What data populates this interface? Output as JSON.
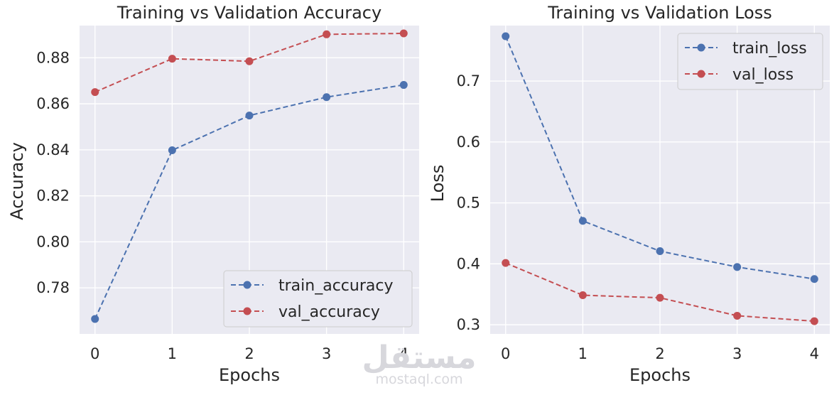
{
  "chart_data": [
    {
      "type": "line",
      "title": "Training vs Validation Accuracy",
      "xlabel": "Epochs",
      "ylabel": "Accuracy",
      "x": [
        0,
        1,
        2,
        3,
        4
      ],
      "xlim": [
        -0.2,
        4.2
      ],
      "ylim": [
        0.76,
        0.894
      ],
      "xticks": [
        "0",
        "1",
        "2",
        "3",
        "4"
      ],
      "yticks": [
        "0.78",
        "0.80",
        "0.82",
        "0.84",
        "0.86",
        "0.88"
      ],
      "grid": true,
      "legend_position": "lower-right",
      "series": [
        {
          "name": "train_accuracy",
          "color": "#4c72b0",
          "style": "dashed-marker",
          "values": [
            0.7665,
            0.8398,
            0.8549,
            0.8629,
            0.8682
          ]
        },
        {
          "name": "val_accuracy",
          "color": "#c44e52",
          "style": "dashed-marker",
          "values": [
            0.8651,
            0.8796,
            0.8785,
            0.8902,
            0.8906
          ]
        }
      ]
    },
    {
      "type": "line",
      "title": "Training vs Validation Loss",
      "xlabel": "Epochs",
      "ylabel": "Loss",
      "x": [
        0,
        1,
        2,
        3,
        4
      ],
      "xlim": [
        -0.2,
        4.2
      ],
      "ylim": [
        0.285,
        0.791
      ],
      "xticks": [
        "0",
        "1",
        "2",
        "3",
        "4"
      ],
      "yticks": [
        "0.3",
        "0.4",
        "0.5",
        "0.6",
        "0.7"
      ],
      "grid": true,
      "legend_position": "upper-right",
      "series": [
        {
          "name": "train_loss",
          "color": "#4c72b0",
          "style": "dashed-marker",
          "values": [
            0.7735,
            0.4705,
            0.4208,
            0.3948,
            0.3751
          ]
        },
        {
          "name": "val_loss",
          "color": "#c44e52",
          "style": "dashed-marker",
          "values": [
            0.4014,
            0.3485,
            0.3443,
            0.3148,
            0.3059
          ]
        }
      ]
    }
  ],
  "watermark": {
    "arabic": "مستقل",
    "latin": "mostaql.com"
  }
}
